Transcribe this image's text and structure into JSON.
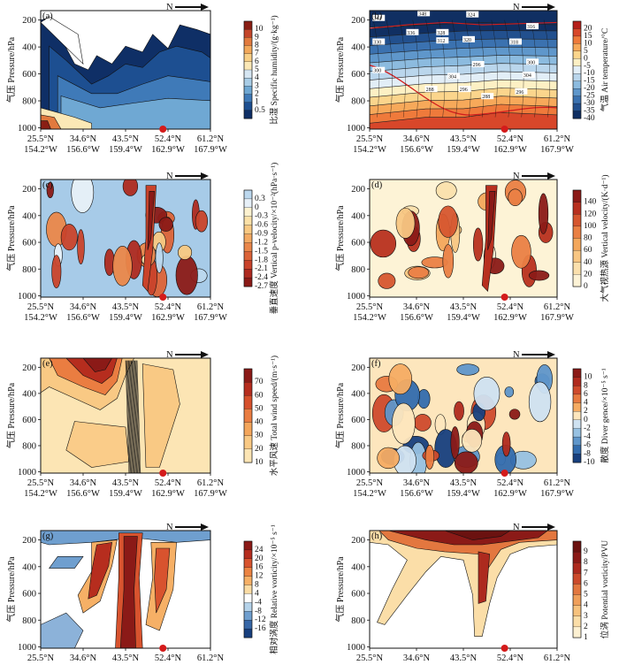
{
  "figure": {
    "north_label": "N",
    "y_axis_label": "气压 Pressure/hPa",
    "pressure_ticks": [
      200,
      400,
      600,
      800,
      1000
    ],
    "x_ticks": [
      {
        "lat": "25.5°N",
        "lon": "154.2°W"
      },
      {
        "lat": "34.6°N",
        "lon": "156.6°W"
      },
      {
        "lat": "43.5°N",
        "lon": "159.4°W"
      },
      {
        "lat": "52.4°N",
        "lon": "162.9°W"
      },
      {
        "lat": "61.2°N",
        "lon": "167.9°W"
      }
    ]
  },
  "chart_data": [
    {
      "panel": "(a)",
      "type": "heatmap",
      "colorbar_title": "比湿 Specific humidity/(g·kg⁻¹)",
      "colorbar_ticks": [
        "10",
        "9",
        "8",
        "7",
        "6",
        "5",
        "4",
        "3",
        "2",
        "1",
        "0.5"
      ],
      "colors": [
        "#8a1e14",
        "#c4452a",
        "#e27a3e",
        "#f2a85a",
        "#f8cf86",
        "#fbe8b6",
        "#d6e6f2",
        "#a9cde6",
        "#6fa8d3",
        "#3f7ab8",
        "#1d4f91",
        "#0f2f66"
      ],
      "marker_lat": "49°N"
    },
    {
      "panel": "(b)",
      "type": "heatmap",
      "colorbar_title": "气温 Air temperature/°C",
      "colorbar_ticks": [
        "20",
        "15",
        "10",
        "5",
        "0",
        "-5",
        "-10",
        "-15",
        "-20",
        "-25",
        "-30",
        "-35",
        "-40"
      ],
      "colors": [
        "#b51f1a",
        "#d8472a",
        "#ef7a3b",
        "#f7a95a",
        "#fbd58c",
        "#fdf0c4",
        "#e2eef7",
        "#bad6ec",
        "#8cbbdf",
        "#5f97cb",
        "#3b72b0",
        "#22508e",
        "#102f62"
      ],
      "contour_labels": [
        "344",
        "348",
        "330",
        "336",
        "324",
        "320",
        "312",
        "328",
        "300",
        "304",
        "318",
        "316",
        "296",
        "300",
        "304",
        "288",
        "296",
        "288",
        "296"
      ],
      "marker_lat": "49°N"
    },
    {
      "panel": "(c)",
      "type": "heatmap",
      "colorbar_title": "垂直速度 Vertical p-velocity/×10⁻²(hPa·s⁻¹)",
      "colorbar_ticks": [
        "0.3",
        "0",
        "-0.3",
        "-0.6",
        "-0.9",
        "-1.2",
        "-1.5",
        "-1.8",
        "-2.1",
        "-2.4",
        "-2.7"
      ],
      "colors": [
        "#bcd8ee",
        "#e7f0f8",
        "#fdf2d0",
        "#fbe1a8",
        "#f8c983",
        "#f3aa63",
        "#ea874a",
        "#dc6338",
        "#c9432b",
        "#ae2a20",
        "#8b1a17"
      ],
      "marker_lat": "49°N"
    },
    {
      "panel": "(d)",
      "type": "heatmap",
      "colorbar_title": "大气视热源 Vertical velocity/(K·d⁻¹)",
      "colorbar_ticks": [
        "140",
        "120",
        "100",
        "80",
        "60",
        "40",
        "20",
        "0"
      ],
      "colors": [
        "#8b1a17",
        "#b8301f",
        "#d6562f",
        "#ea8044",
        "#f4a75c",
        "#f8c683",
        "#fbe0ad",
        "#fdf3d6"
      ],
      "marker_lat": "49°N"
    },
    {
      "panel": "(e)",
      "type": "heatmap",
      "colorbar_title": "水平风速 Total wind speed/(m·s⁻¹)",
      "colorbar_ticks": [
        "70",
        "60",
        "50",
        "40",
        "30",
        "20",
        "10"
      ],
      "colors": [
        "#8b1a17",
        "#b62d1e",
        "#d6502c",
        "#ea7d41",
        "#f4a65b",
        "#f9c984",
        "#fce5b4"
      ],
      "marker_lat": "49°N"
    },
    {
      "panel": "(f)",
      "type": "heatmap",
      "colorbar_title": "散度 Diver gence/×10⁻⁵ s⁻¹",
      "colorbar_ticks": [
        "10",
        "8",
        "6",
        "4",
        "2",
        "0",
        "-2",
        "-4",
        "-6",
        "-8",
        "-10"
      ],
      "colors": [
        "#8b1a17",
        "#b02a1e",
        "#cf4a2c",
        "#e87a40",
        "#f6ac63",
        "#fde6bd",
        "#cfe2f1",
        "#97c1e2",
        "#5f96ca",
        "#336cad",
        "#173f7e"
      ],
      "marker_lat": "49°N"
    },
    {
      "panel": "(g)",
      "type": "heatmap",
      "colorbar_title": "相对涡度 Relative vorticity/×10⁻⁵ s⁻¹",
      "colorbar_ticks": [
        "24",
        "20",
        "16",
        "12",
        "8",
        "4",
        "-4",
        "-8",
        "-12",
        "-16"
      ],
      "colors": [
        "#8b1a17",
        "#b62d1e",
        "#d8532e",
        "#ec8443",
        "#f6b066",
        "#fbdca4",
        "#ffffff",
        "#b5d3ea",
        "#6f9fcf",
        "#3767a7",
        "#173f7e"
      ],
      "marker_lat": "49°N"
    },
    {
      "panel": "(h)",
      "type": "heatmap",
      "colorbar_title": "位涡 Potential vorticity/PVU",
      "colorbar_ticks": [
        "9",
        "8",
        "7",
        "6",
        "5",
        "4",
        "3",
        "2",
        "1"
      ],
      "colors": [
        "#6b1210",
        "#8b1a17",
        "#ad2a1e",
        "#cc4a2b",
        "#e3773f",
        "#f09f5a",
        "#f7c27d",
        "#fbdea8",
        "#fdf1d2"
      ],
      "marker_lat": "49°N"
    }
  ]
}
